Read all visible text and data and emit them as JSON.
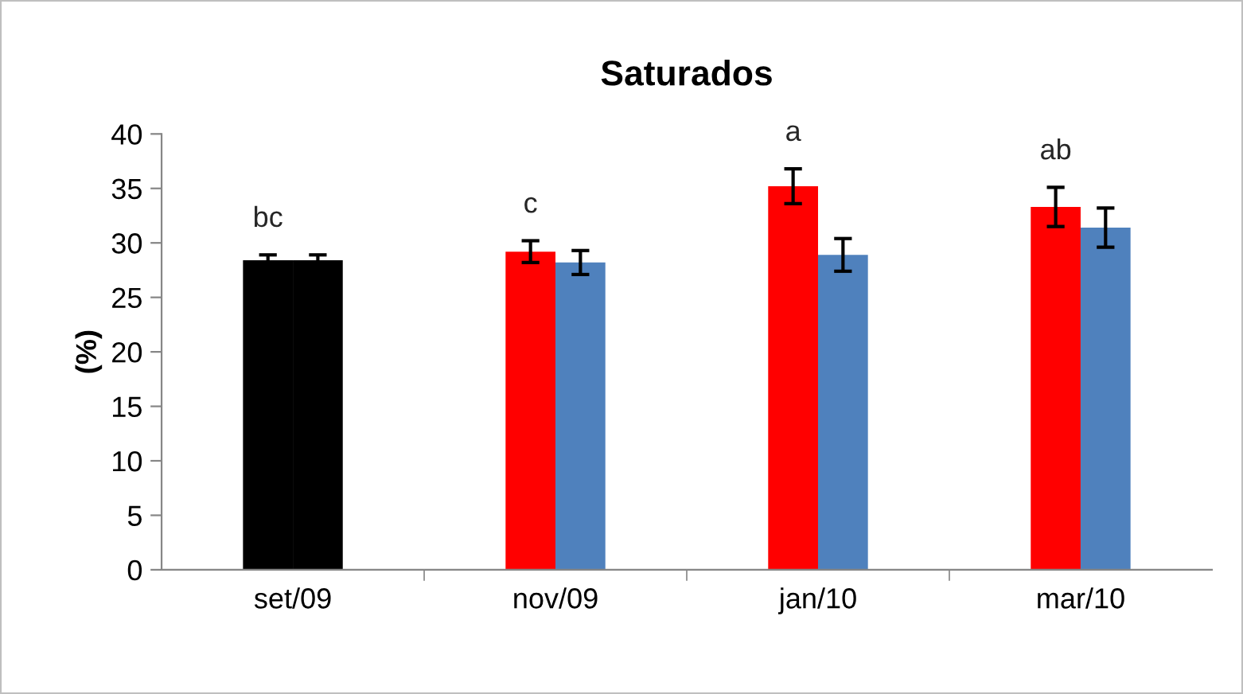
{
  "chart_data": {
    "type": "bar",
    "title": "Saturados",
    "ylabel": "(%)",
    "categories": [
      "set/09",
      "nov/09",
      "jan/10",
      "mar/10"
    ],
    "series": [
      {
        "colors": [
          "#000000",
          "#ff0000",
          "#ff0000",
          "#ff0000"
        ],
        "values": [
          28.4,
          29.2,
          35.2,
          33.3
        ],
        "errors": [
          0.5,
          1.0,
          1.6,
          1.8
        ]
      },
      {
        "colors": [
          "#000000",
          "#4f81bd",
          "#4f81bd",
          "#4f81bd"
        ],
        "values": [
          28.4,
          28.2,
          28.9,
          31.4
        ],
        "errors": [
          0.5,
          1.1,
          1.5,
          1.8
        ]
      }
    ],
    "annotations": [
      "bc",
      "c",
      "a",
      "ab"
    ],
    "ylim": [
      0,
      40
    ],
    "yticks": [
      0,
      5,
      10,
      15,
      20,
      25,
      30,
      35,
      40
    ],
    "grid": false,
    "legend": false
  }
}
